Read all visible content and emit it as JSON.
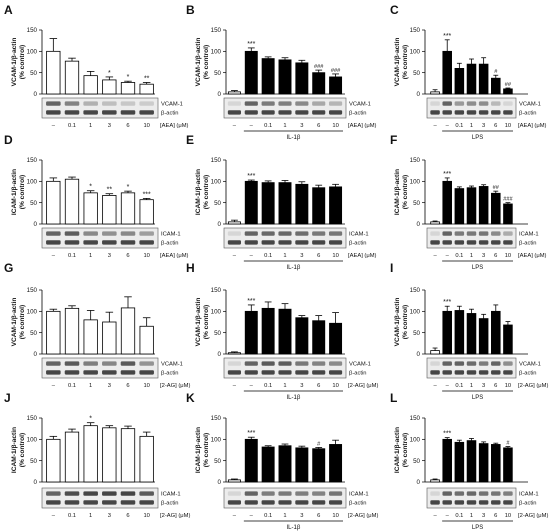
{
  "blot_row_labels": {
    "vcam": "VCAM-1",
    "icam": "ICAM-1",
    "actin": "β-actin"
  },
  "x_ticks": [
    "–",
    "–",
    "0.1",
    "1",
    "3",
    "6",
    "10"
  ],
  "x_ticks_baseline": [
    "–",
    "0.1",
    "1",
    "3",
    "6",
    "10"
  ],
  "chart_data": [
    {
      "panel": "A",
      "type": "bar",
      "ylabel": "VCAM-1/β-actin\n(% control)",
      "ylim": [
        0,
        150
      ],
      "yticks": [
        0,
        50,
        100,
        150
      ],
      "categories": [
        "–",
        "0.1",
        "1",
        "3",
        "6",
        "10"
      ],
      "values": [
        100,
        77,
        43,
        33,
        27,
        23
      ],
      "errors": [
        30,
        7,
        10,
        7,
        3,
        4
      ],
      "annotations": [
        "",
        "",
        "",
        "*",
        "*",
        "**"
      ],
      "fill": [
        "white",
        "white",
        "white",
        "white",
        "white",
        "white"
      ],
      "blot": "vcam",
      "agent": "[AEA] (μM)",
      "stimulus": ""
    },
    {
      "panel": "B",
      "type": "bar",
      "ylabel": "VCAM-1/β-actin\n(% control)",
      "ylim": [
        0,
        150
      ],
      "yticks": [
        0,
        50,
        100,
        150
      ],
      "categories": [
        "–",
        "–",
        "0.1",
        "1",
        "3",
        "6",
        "10"
      ],
      "values": [
        5,
        100,
        83,
        80,
        73,
        50,
        40
      ],
      "errors": [
        3,
        8,
        4,
        5,
        6,
        6,
        7
      ],
      "annotations": [
        "",
        "***",
        "",
        "",
        "",
        "###",
        "###"
      ],
      "fill": [
        "white",
        "black",
        "black",
        "black",
        "black",
        "black",
        "black"
      ],
      "blot": "vcam",
      "agent": "[AEA] (μM)",
      "stimulus": "IL-1β"
    },
    {
      "panel": "C",
      "type": "bar",
      "ylabel": "VCAM-1/β-actin\n(% control)",
      "ylim": [
        0,
        150
      ],
      "yticks": [
        0,
        50,
        100,
        150
      ],
      "categories": [
        "–",
        "–",
        "0.1",
        "1",
        "3",
        "6",
        "10"
      ],
      "values": [
        5,
        100,
        60,
        70,
        70,
        37,
        12
      ],
      "errors": [
        5,
        27,
        12,
        12,
        15,
        7,
        2
      ],
      "annotations": [
        "",
        "***",
        "",
        "",
        "",
        "#",
        "##"
      ],
      "fill": [
        "white",
        "black",
        "black",
        "black",
        "black",
        "black",
        "black"
      ],
      "blot": "vcam",
      "agent": "[AEA] (μM)",
      "stimulus": "LPS"
    },
    {
      "panel": "D",
      "type": "bar",
      "ylabel": "ICAM-1/β-actin\n(% control)",
      "ylim": [
        0,
        150
      ],
      "yticks": [
        0,
        50,
        100,
        150
      ],
      "categories": [
        "–",
        "0.1",
        "1",
        "3",
        "6",
        "10"
      ],
      "values": [
        100,
        105,
        73,
        67,
        73,
        57
      ],
      "errors": [
        8,
        5,
        5,
        4,
        4,
        3
      ],
      "annotations": [
        "",
        "",
        "*",
        "**",
        "*",
        "***"
      ],
      "fill": [
        "white",
        "white",
        "white",
        "white",
        "white",
        "white"
      ],
      "blot": "icam",
      "agent": "[AEA] (μM)",
      "stimulus": ""
    },
    {
      "panel": "E",
      "type": "bar",
      "ylabel": "ICAM-1/β-actin\n(% control)",
      "ylim": [
        0,
        150
      ],
      "yticks": [
        0,
        50,
        100,
        150
      ],
      "categories": [
        "–",
        "–",
        "0.1",
        "1",
        "3",
        "6",
        "10"
      ],
      "values": [
        5,
        100,
        97,
        97,
        93,
        85,
        87
      ],
      "errors": [
        4,
        3,
        4,
        5,
        6,
        6,
        6
      ],
      "annotations": [
        "",
        "***",
        "",
        "",
        "",
        "",
        ""
      ],
      "fill": [
        "white",
        "black",
        "black",
        "black",
        "black",
        "black",
        "black"
      ],
      "blot": "icam",
      "agent": "[AEA] (μM)",
      "stimulus": "IL-1β"
    },
    {
      "panel": "F",
      "type": "bar",
      "ylabel": "ICAM-1/β-actin\n(% control)",
      "ylim": [
        0,
        150
      ],
      "yticks": [
        0,
        50,
        100,
        150
      ],
      "categories": [
        "–",
        "–",
        "0.1",
        "1",
        "3",
        "6",
        "10"
      ],
      "values": [
        5,
        100,
        83,
        85,
        88,
        72,
        47
      ],
      "errors": [
        2,
        8,
        4,
        4,
        4,
        5,
        3
      ],
      "annotations": [
        "",
        "***",
        "",
        "",
        "",
        "##",
        "###"
      ],
      "fill": [
        "white",
        "black",
        "black",
        "black",
        "black",
        "black",
        "black"
      ],
      "blot": "icam",
      "agent": "[AEA] (μM)",
      "stimulus": "LPS"
    },
    {
      "panel": "G",
      "type": "bar",
      "ylabel": "VCAM-1/β-actin\n(% control)",
      "ylim": [
        0,
        150
      ],
      "yticks": [
        0,
        50,
        100,
        150
      ],
      "categories": [
        "–",
        "0.1",
        "1",
        "3",
        "6",
        "10"
      ],
      "values": [
        100,
        107,
        80,
        75,
        108,
        65
      ],
      "errors": [
        5,
        6,
        22,
        23,
        26,
        20
      ],
      "annotations": [
        "",
        "",
        "",
        "",
        "",
        ""
      ],
      "fill": [
        "white",
        "white",
        "white",
        "white",
        "white",
        "white"
      ],
      "blot": "vcam",
      "agent": "[2-AG] (μM)",
      "stimulus": ""
    },
    {
      "panel": "H",
      "type": "bar",
      "ylabel": "VCAM-1/β-actin\n(% control)",
      "ylim": [
        0,
        150
      ],
      "yticks": [
        0,
        50,
        100,
        150
      ],
      "categories": [
        "–",
        "–",
        "0.1",
        "1",
        "3",
        "6",
        "10"
      ],
      "values": [
        3,
        100,
        107,
        105,
        85,
        78,
        72
      ],
      "errors": [
        2,
        15,
        15,
        13,
        5,
        12,
        25
      ],
      "annotations": [
        "",
        "***",
        "",
        "",
        "",
        "",
        ""
      ],
      "fill": [
        "white",
        "black",
        "black",
        "black",
        "black",
        "black",
        "black"
      ],
      "blot": "vcam",
      "agent": "[2-AG] (μM)",
      "stimulus": "IL-1β"
    },
    {
      "panel": "I",
      "type": "bar",
      "ylabel": "VCAM-1/β-actin\n(% control)",
      "ylim": [
        0,
        150
      ],
      "yticks": [
        0,
        50,
        100,
        150
      ],
      "categories": [
        "–",
        "–",
        "0.1",
        "1",
        "3",
        "6",
        "10"
      ],
      "values": [
        8,
        100,
        102,
        95,
        83,
        100,
        68
      ],
      "errors": [
        6,
        12,
        10,
        10,
        10,
        15,
        8
      ],
      "annotations": [
        "",
        "***",
        "",
        "",
        "",
        "",
        ""
      ],
      "fill": [
        "white",
        "black",
        "black",
        "black",
        "black",
        "black",
        "black"
      ],
      "blot": "vcam",
      "agent": "[2-AG] (μM)",
      "stimulus": "LPS"
    },
    {
      "panel": "J",
      "type": "bar",
      "ylabel": "ICAM-1/β-actin\n(% control)",
      "ylim": [
        0,
        150
      ],
      "yticks": [
        0,
        50,
        100,
        150
      ],
      "categories": [
        "–",
        "0.1",
        "1",
        "3",
        "6",
        "10"
      ],
      "values": [
        100,
        117,
        132,
        127,
        125,
        107
      ],
      "errors": [
        7,
        7,
        7,
        5,
        6,
        10
      ],
      "annotations": [
        "",
        "",
        "*",
        "",
        "",
        ""
      ],
      "fill": [
        "white",
        "white",
        "white",
        "white",
        "white",
        "white"
      ],
      "blot": "icam",
      "agent": "[2-AG] (μM)",
      "stimulus": ""
    },
    {
      "panel": "K",
      "type": "bar",
      "ylabel": "ICAM-1/β-actin\n(% control)",
      "ylim": [
        0,
        150
      ],
      "yticks": [
        0,
        50,
        100,
        150
      ],
      "categories": [
        "–",
        "–",
        "0.1",
        "1",
        "3",
        "6",
        "10"
      ],
      "values": [
        5,
        100,
        82,
        85,
        80,
        78,
        88
      ],
      "errors": [
        2,
        5,
        3,
        4,
        4,
        3,
        10
      ],
      "annotations": [
        "",
        "***",
        "",
        "",
        "",
        "#",
        ""
      ],
      "fill": [
        "white",
        "black",
        "black",
        "black",
        "black",
        "black",
        "black"
      ],
      "blot": "icam",
      "agent": "[2-AG] (μM)",
      "stimulus": "IL-1β"
    },
    {
      "panel": "L",
      "type": "bar",
      "ylabel": "ICAM-1/β-actin\n(% control)",
      "ylim": [
        0,
        150
      ],
      "yticks": [
        0,
        50,
        100,
        150
      ],
      "categories": [
        "–",
        "–",
        "0.1",
        "1",
        "3",
        "6",
        "10"
      ],
      "values": [
        5,
        100,
        93,
        97,
        90,
        88,
        80
      ],
      "errors": [
        2,
        4,
        5,
        5,
        4,
        3,
        3
      ],
      "annotations": [
        "",
        "***",
        "",
        "",
        "",
        "",
        "#"
      ],
      "fill": [
        "white",
        "black",
        "black",
        "black",
        "black",
        "black",
        "black"
      ],
      "blot": "icam",
      "agent": "[2-AG] (μM)",
      "stimulus": "LPS"
    }
  ]
}
